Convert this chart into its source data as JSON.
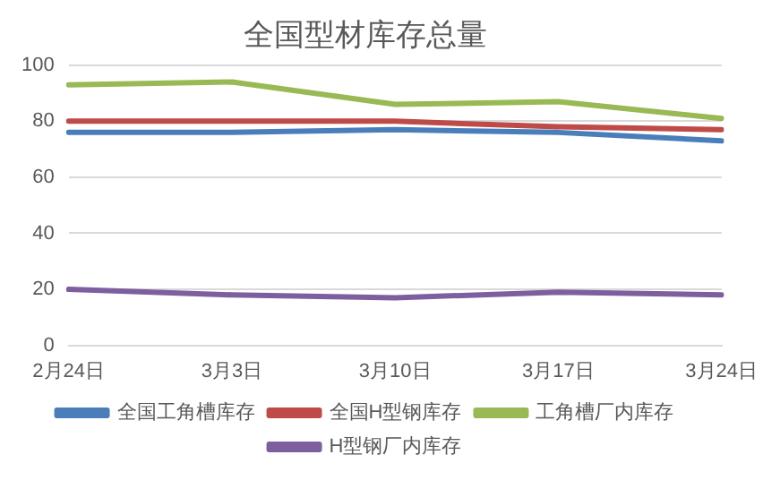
{
  "chart_data": {
    "type": "line",
    "title": "全国型材库存总量",
    "categories": [
      "2月24日",
      "3月3日",
      "3月10日",
      "3月17日",
      "3月24日"
    ],
    "series": [
      {
        "name": "全国工角槽库存",
        "color": "#4a7ebb",
        "values": [
          76,
          76,
          77,
          76,
          73
        ]
      },
      {
        "name": "全国H型钢库存",
        "color": "#be4b48",
        "values": [
          80,
          80,
          80,
          78,
          77
        ]
      },
      {
        "name": "工角槽厂内库存",
        "color": "#98b954",
        "values": [
          93,
          94,
          86,
          87,
          81
        ]
      },
      {
        "name": "H型钢厂内库存",
        "color": "#7d5fa0",
        "values": [
          20,
          18,
          17,
          19,
          18
        ]
      }
    ],
    "ylim": [
      0,
      100
    ],
    "yticks": [
      0,
      20,
      40,
      60,
      80,
      100
    ],
    "grid": "y",
    "legend": "bottom",
    "marker": "none",
    "line_style": "solid"
  }
}
